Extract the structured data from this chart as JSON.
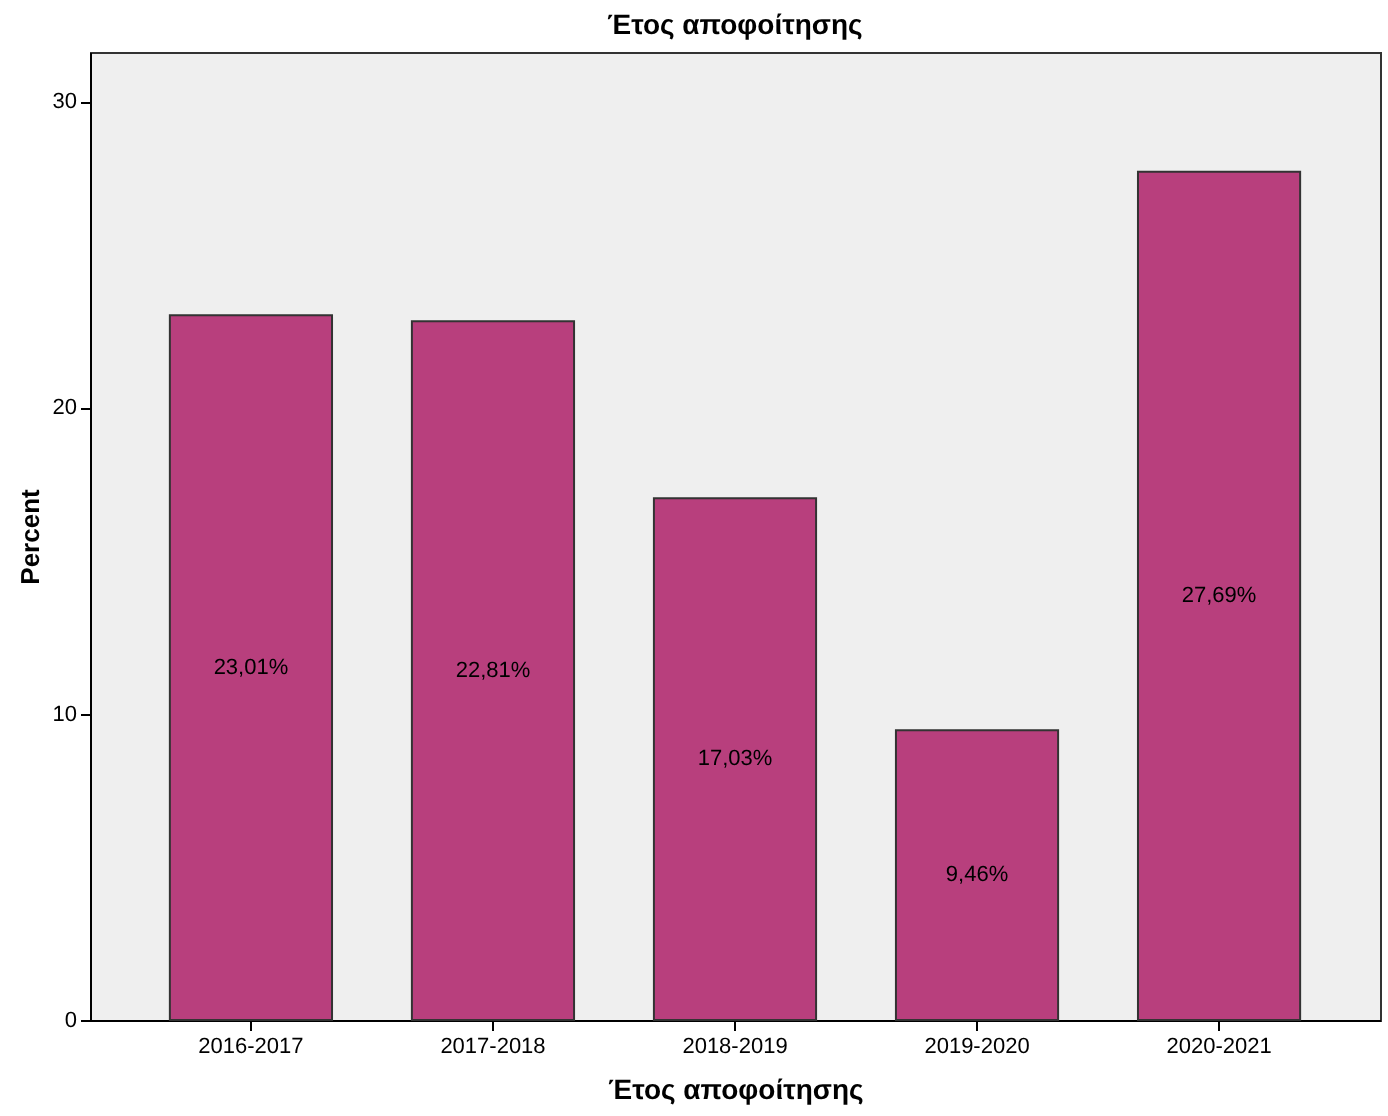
{
  "chart_data": {
    "type": "bar",
    "title": "Έτος αποφοίτησης",
    "xlabel": "Έτος αποφοίτησης",
    "ylabel": "Percent",
    "categories": [
      "2016-2017",
      "2017-2018",
      "2018-2019",
      "2019-2020",
      "2020-2021"
    ],
    "values": [
      23.01,
      22.81,
      17.03,
      9.46,
      27.69
    ],
    "value_labels": [
      "23,01%",
      "22,81%",
      "17,03%",
      "9,46%",
      "27,69%"
    ],
    "color": "#b83f7d",
    "ylim": [
      0,
      31.6
    ],
    "yticks": [
      0,
      10,
      20,
      30
    ],
    "grid": false
  }
}
